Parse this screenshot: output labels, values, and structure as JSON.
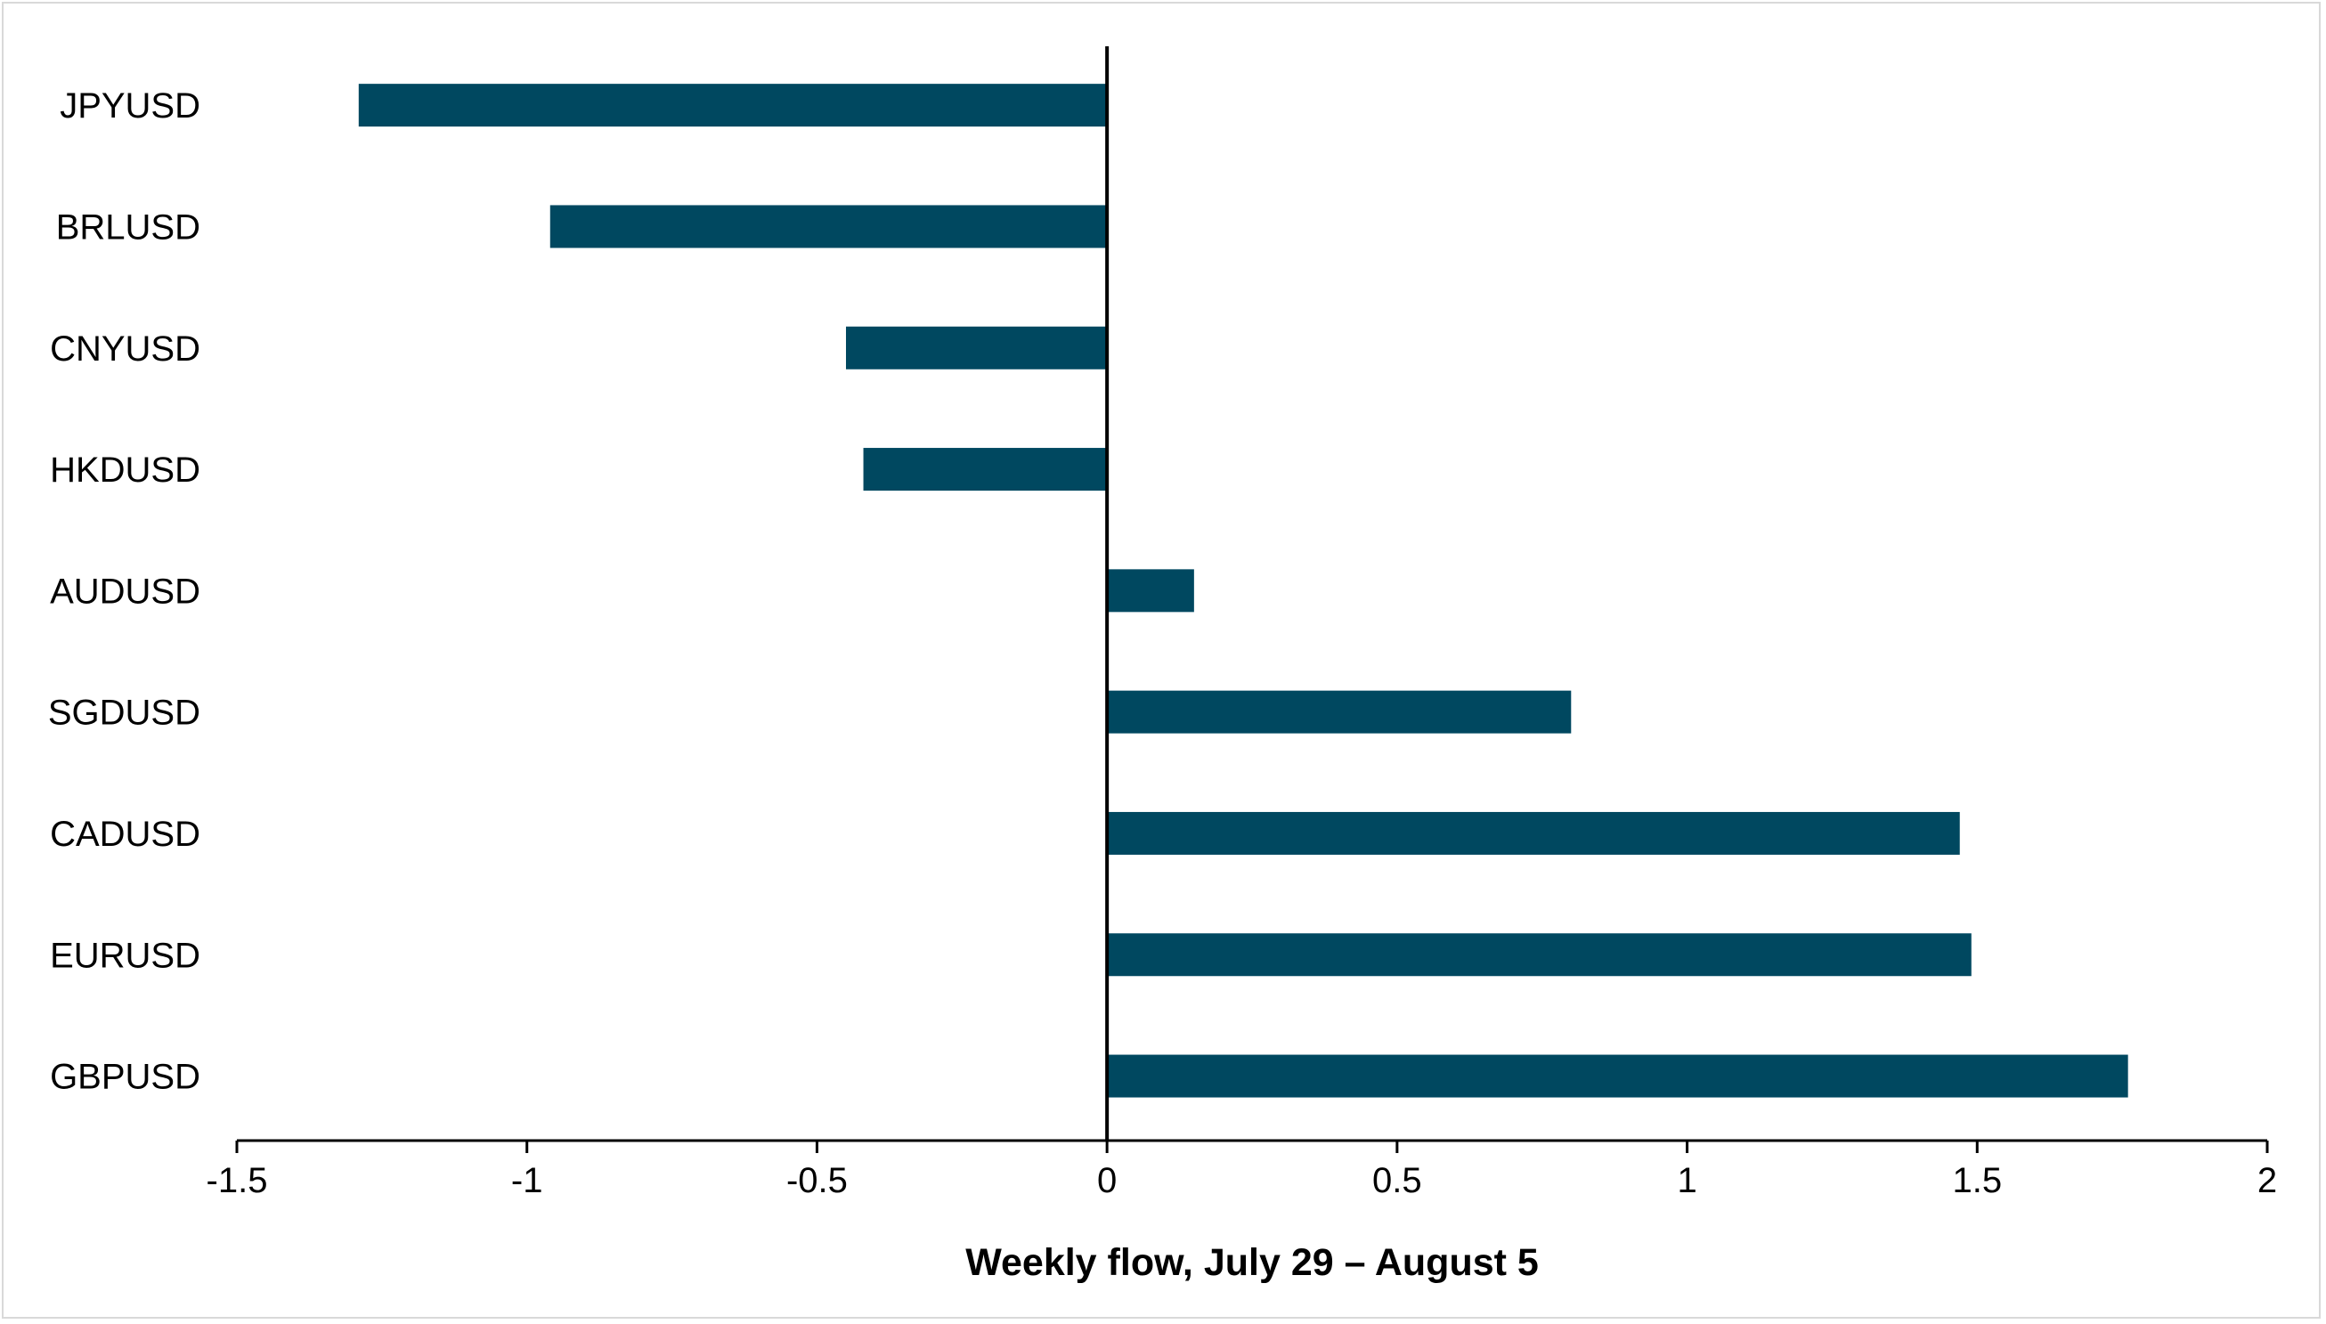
{
  "chart_data": {
    "type": "bar",
    "orientation": "horizontal",
    "categories": [
      "JPYUSD",
      "BRLUSD",
      "CNYUSD",
      "HKDUSD",
      "AUDUSD",
      "SGDUSD",
      "CADUSD",
      "EURUSD",
      "GBPUSD"
    ],
    "values": [
      -1.29,
      -0.96,
      -0.45,
      -0.42,
      0.15,
      0.8,
      1.47,
      1.49,
      1.76
    ],
    "xlabel": "Weekly flow, July 29 – August 5",
    "ylabel": "",
    "title": "",
    "xlim": [
      -1.5,
      2
    ],
    "xticks": [
      "-1.5",
      "-1",
      "-0.5",
      "0",
      "0.5",
      "1",
      "1.5",
      "2"
    ],
    "grid": false,
    "legend": "none",
    "bar_color": "#004860"
  }
}
